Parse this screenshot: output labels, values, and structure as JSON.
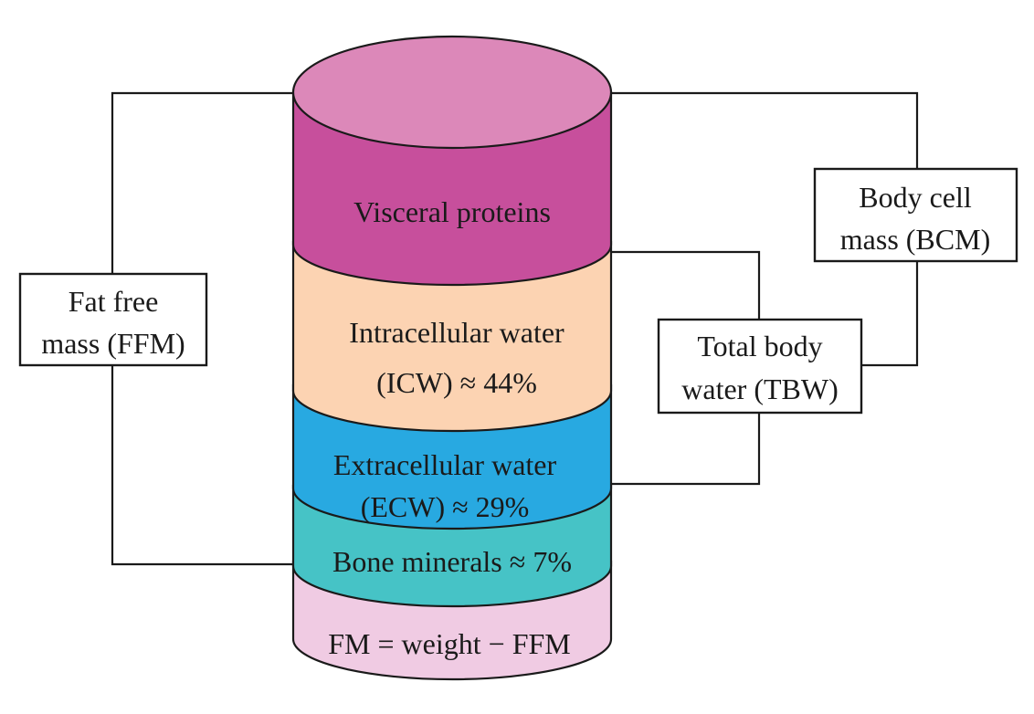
{
  "colors": {
    "top_ellipse": "#dc88b9",
    "visceral": "#c74f9c",
    "icw": "#fcd3b2",
    "ecw": "#28a9e1",
    "bone": "#46c3c6",
    "fm": "#f0cbe3",
    "outline": "#1a1a1a"
  },
  "segments": {
    "visceral": {
      "line1": "Visceral proteins"
    },
    "icw": {
      "line1": "Intracellular water",
      "line2": "(ICW) ≈ 44%"
    },
    "ecw": {
      "line1": "Extracellular water",
      "line2": "(ECW) ≈ 29%"
    },
    "bone": {
      "line1": "Bone minerals ≈ 7%"
    },
    "fm": {
      "line1": "FM = weight − FFM"
    }
  },
  "boxes": {
    "ffm": {
      "line1": "Fat free",
      "line2": "mass (FFM)"
    },
    "bcm": {
      "line1": "Body cell",
      "line2": "mass (BCM)"
    },
    "tbw": {
      "line1": "Total body",
      "line2": "water (TBW)"
    }
  }
}
